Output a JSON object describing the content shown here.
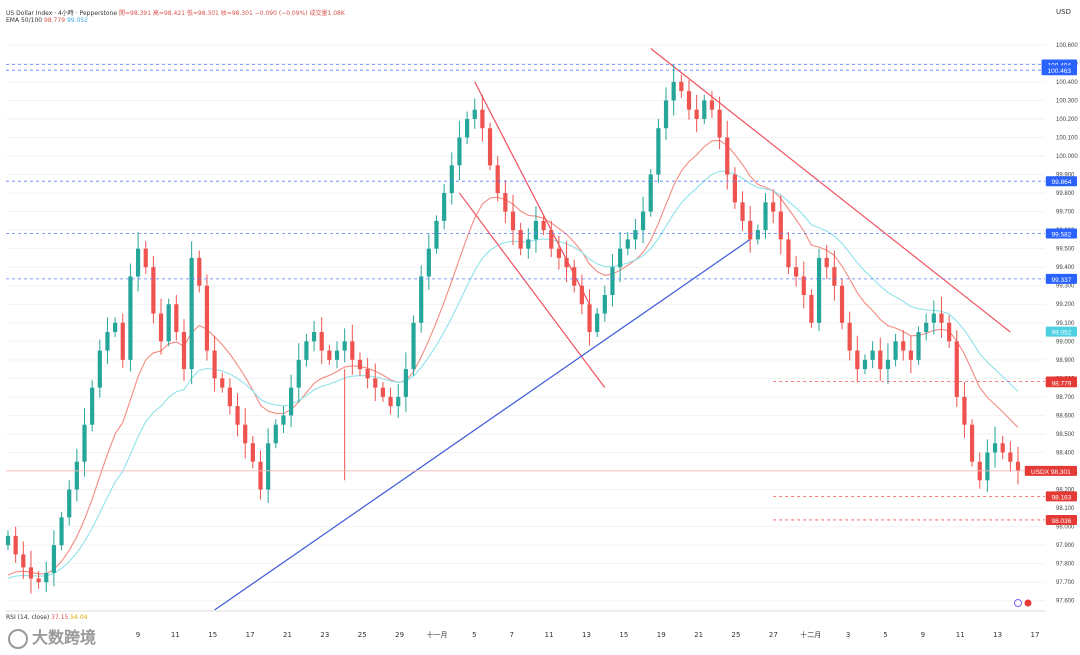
{
  "header": {
    "title": "US Dollar Index · 4小時 · Pepperstone",
    "ohlc": "開=98.391 高=98.421 低=98.301 收=98.301 −0.090 (−0.09%) 成交量1.08K",
    "ema_label": "EMA 50/100",
    "ema_values": [
      "98.779",
      "99.052"
    ]
  },
  "rsi_label": "RSI (14, close)",
  "rsi_values": [
    "37.15",
    "54.04"
  ],
  "currency": "USD",
  "watermark": "大数跨境",
  "colors": {
    "up": "#26a69a",
    "down": "#ef5350",
    "ema_fast": "#f28b82",
    "ema_slow": "#8fe3ea",
    "trend_down": "#f05060",
    "trend_up": "#3b5bdb",
    "label_blue": "#2962ff",
    "label_red": "#e53935"
  },
  "chart_data": {
    "type": "candlestick",
    "title": "US Dollar Index · 4小時 · Pepperstone",
    "ylim": [
      97.55,
      100.68
    ],
    "y_ticks": [
      "100.600",
      "100.500",
      "100.400",
      "100.300",
      "100.200",
      "100.100",
      "100.000",
      "99.900",
      "99.800",
      "99.700",
      "99.600",
      "99.500",
      "99.400",
      "99.300",
      "99.200",
      "99.100",
      "99.000",
      "98.900",
      "98.800",
      "98.700",
      "98.600",
      "98.500",
      "98.400",
      "98.300",
      "98.200",
      "98.100",
      "98.000",
      "97.900",
      "97.800",
      "97.700",
      "97.600"
    ],
    "x_ticks": [
      "9",
      "11",
      "15",
      "17",
      "21",
      "23",
      "25",
      "29",
      "十一月",
      "5",
      "7",
      "11",
      "13",
      "15",
      "19",
      "21",
      "25",
      "27",
      "十二月",
      "3",
      "5",
      "9",
      "11",
      "13",
      "17"
    ],
    "price_labels": [
      {
        "value": "100.494",
        "color": "blue",
        "line": "dashed-blue"
      },
      {
        "value": "100.463",
        "color": "blue",
        "line": "dashed-blue"
      },
      {
        "value": "99.864",
        "color": "blue",
        "line": "dashed-blue"
      },
      {
        "value": "99.582",
        "color": "blue",
        "line": "dashed-blue"
      },
      {
        "value": "99.337",
        "color": "blue",
        "line": "dashed-blue"
      },
      {
        "value": "99.052",
        "color": "cyan",
        "line": "none"
      },
      {
        "value": "98.783",
        "color": "red",
        "line": "dashed-red"
      },
      {
        "value": "98.779",
        "color": "red",
        "line": "none"
      },
      {
        "value": "USDX 98.301",
        "color": "red",
        "line": "solid-red"
      },
      {
        "value": "98.163",
        "color": "red",
        "line": "dashed-red"
      },
      {
        "value": "98.036",
        "color": "red",
        "line": "dashed-red"
      }
    ],
    "close_series": [
      97.95,
      97.85,
      97.78,
      97.72,
      97.7,
      97.75,
      97.9,
      98.05,
      98.2,
      98.35,
      98.55,
      98.75,
      98.95,
      99.05,
      99.1,
      98.9,
      99.35,
      99.5,
      99.4,
      99.15,
      99.0,
      99.2,
      99.05,
      98.85,
      99.45,
      99.3,
      98.95,
      98.8,
      98.75,
      98.65,
      98.55,
      98.45,
      98.35,
      98.2,
      98.45,
      98.55,
      98.6,
      98.75,
      98.9,
      99.0,
      99.05,
      98.95,
      98.9,
      98.95,
      99.0,
      98.9,
      98.85,
      98.8,
      98.75,
      98.7,
      98.65,
      98.7,
      98.85,
      99.1,
      99.35,
      99.5,
      99.65,
      99.8,
      99.95,
      100.1,
      100.2,
      100.25,
      100.15,
      99.95,
      99.8,
      99.7,
      99.6,
      99.5,
      99.55,
      99.65,
      99.6,
      99.5,
      99.45,
      99.4,
      99.3,
      99.2,
      99.05,
      99.15,
      99.25,
      99.4,
      99.5,
      99.55,
      99.6,
      99.7,
      99.9,
      100.15,
      100.3,
      100.4,
      100.35,
      100.25,
      100.2,
      100.3,
      100.25,
      100.1,
      99.9,
      99.75,
      99.65,
      99.55,
      99.6,
      99.75,
      99.7,
      99.55,
      99.4,
      99.35,
      99.25,
      99.1,
      99.45,
      99.4,
      99.3,
      99.1,
      98.95,
      98.85,
      98.9,
      98.95,
      98.85,
      98.9,
      99.0,
      98.95,
      98.9,
      99.05,
      99.1,
      99.15,
      99.1,
      99.0,
      98.7,
      98.55,
      98.35,
      98.25,
      98.4,
      98.45,
      98.4,
      98.35,
      98.3
    ],
    "ema_series": [
      {
        "name": "EMA 50",
        "last": 98.779
      },
      {
        "name": "EMA 100",
        "last": 99.052
      }
    ],
    "trendlines": [
      {
        "kind": "descending-channel-upper",
        "from_label": "5",
        "to_label": "15",
        "color": "red"
      },
      {
        "kind": "descending-channel-lower",
        "from_label": "5",
        "to_label": "15",
        "color": "red"
      },
      {
        "kind": "descending-resistance",
        "from_label": "21",
        "to_label": "17",
        "color": "red"
      },
      {
        "kind": "ascending-support",
        "from_label": "15",
        "to_label": "27",
        "color": "blue"
      }
    ],
    "xlabel": "",
    "ylabel": "",
    "legend": "top-left"
  }
}
